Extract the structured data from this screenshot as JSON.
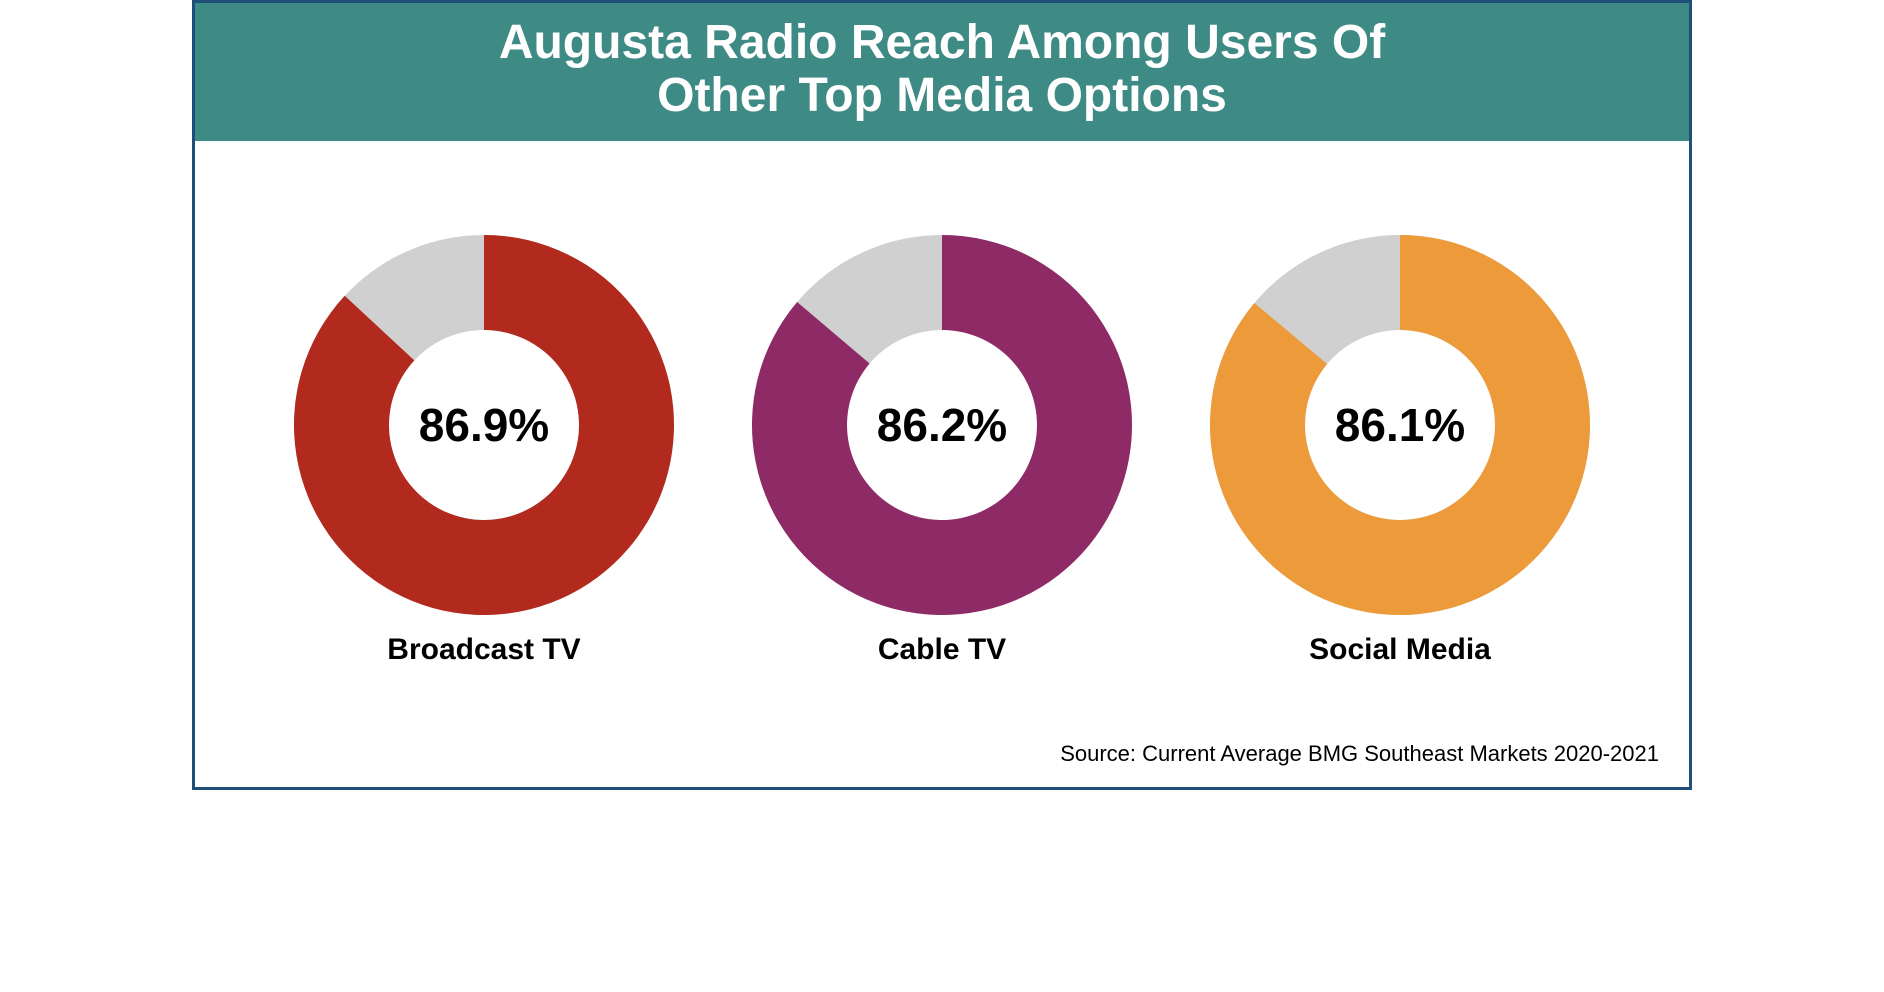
{
  "frame": {
    "border_color": "#1f4e79",
    "background_color": "#ffffff"
  },
  "title": {
    "line1": "Augusta Radio Reach Among Users Of",
    "line2": "Other Top Media Options",
    "background_color": "#3e8a84",
    "text_color": "#ffffff",
    "fontsize": 48,
    "fontweight": 700
  },
  "donuts": {
    "type": "donut",
    "ring_outer_radius": 190,
    "ring_inner_radius": 95,
    "track_color": "#d0d0d0",
    "start_angle_deg": 0,
    "value_fontsize": 46,
    "value_fontweight": 700,
    "value_color": "#000000",
    "label_fontsize": 30,
    "label_fontweight": 700,
    "label_color": "#000000",
    "items": [
      {
        "label": "Broadcast TV",
        "percent": 86.9,
        "display": "86.9%",
        "color": "#b22a1e"
      },
      {
        "label": "Cable TV",
        "percent": 86.2,
        "display": "86.2%",
        "color": "#8e2a66"
      },
      {
        "label": "Social Media",
        "percent": 86.1,
        "display": "86.1%",
        "color": "#ed9a3a"
      }
    ]
  },
  "source": {
    "text": "Source: Current Average BMG Southeast Markets 2020-2021",
    "fontsize": 22,
    "color": "#000000"
  }
}
